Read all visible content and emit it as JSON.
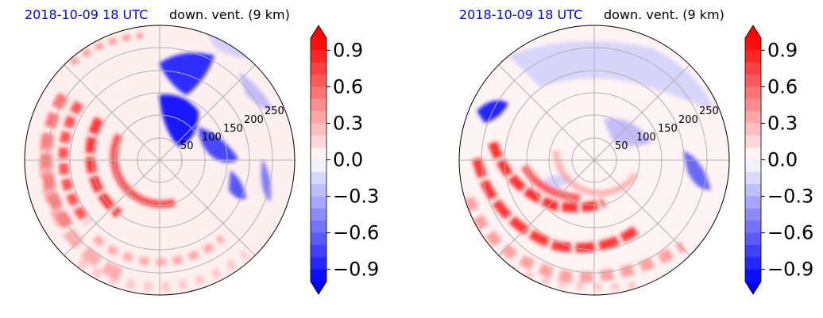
{
  "panels": [
    {
      "title_left": "2018-10-09 18 UTC",
      "title_right": "down. vent. (9 km)",
      "ring_labels": [
        "50",
        "100",
        "150",
        "200",
        "250"
      ]
    },
    {
      "title_left": "2018-10-09 18 UTC",
      "title_right": "down. vent. (9 km)",
      "ring_labels": [
        "50",
        "100",
        "150",
        "200",
        "250"
      ]
    }
  ],
  "colorbar": {
    "ticks": [
      "0.9",
      "0.6",
      "0.3",
      "0.0",
      "−0.3",
      "−0.6",
      "−0.9"
    ],
    "colors": {
      "max": "#ff0000",
      "mid": "#ffffff",
      "min": "#0000ff"
    }
  },
  "chart_data": [
    {
      "type": "heatmap",
      "projection": "polar",
      "radial_ticks": [
        50,
        100,
        150,
        200,
        250
      ],
      "radial_max": 300,
      "grid": true,
      "colorbar_range": [
        -1.0,
        1.0
      ],
      "colorbar_ticks": [
        0.9,
        0.6,
        0.3,
        0.0,
        -0.3,
        -0.6,
        -0.9
      ]
    },
    {
      "type": "heatmap",
      "projection": "polar",
      "radial_ticks": [
        50,
        100,
        150,
        200,
        250
      ],
      "radial_max": 300,
      "grid": true,
      "colorbar_range": [
        -1.0,
        1.0
      ],
      "colorbar_ticks": [
        0.9,
        0.6,
        0.3,
        0.0,
        -0.3,
        -0.6,
        -0.9
      ]
    }
  ]
}
